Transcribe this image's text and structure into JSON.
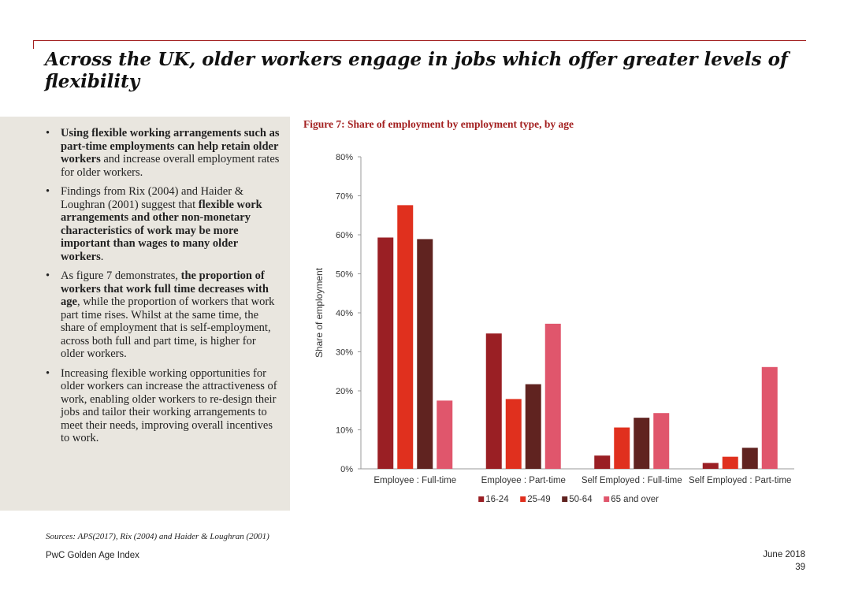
{
  "title": "Across the UK, older workers engage in jobs which offer greater levels of flexibility",
  "bullets": [
    {
      "bold_1": "Using flexible working arrangements such as part-time employments can help retain older workers",
      "text_1": " and increase overall employment rates for older workers.",
      "bold_2": "",
      "text_2": ""
    },
    {
      "bold_1": "",
      "text_1": "Findings from Rix (2004) and Haider & Loughran (2001) suggest that ",
      "bold_2": "flexible work arrangements and other non-monetary characteristics of work may be more important than wages to many older workers",
      "text_2": "."
    },
    {
      "bold_1": "",
      "text_1": "As figure 7 demonstrates, ",
      "bold_2": "the proportion of workers that work full time decreases with age",
      "text_2": ", while the proportion of workers that work part time rises. Whilst at the same time, the share of employment that is self-employment, across both full and part time, is higher for older workers."
    },
    {
      "bold_1": "",
      "text_1": "Increasing flexible working opportunities for older workers can increase the attractiveness of work, enabling older workers to re-design their jobs and tailor their working arrangements to meet their needs, improving overall incentives to work.",
      "bold_2": "",
      "text_2": ""
    }
  ],
  "figure_title": "Figure 7: Share of employment by employment type, by age",
  "sources": "Sources: APS(2017), Rix (2004) and Haider & Loughran (2001)",
  "footer": {
    "left": "PwC Golden Age Index",
    "date": "June 2018",
    "page": "39"
  },
  "colors": {
    "accent": "#a32020",
    "panel": "#e9e6df"
  },
  "chart_data": {
    "type": "bar",
    "title": "Figure 7: Share of employment by employment type, by age",
    "xlabel": "",
    "ylabel": "Share of employment",
    "ylim": [
      0,
      0.8
    ],
    "yticks": [
      0,
      0.1,
      0.2,
      0.3,
      0.4,
      0.5,
      0.6,
      0.7,
      0.8
    ],
    "ytick_labels": [
      "0%",
      "10%",
      "20%",
      "30%",
      "40%",
      "50%",
      "60%",
      "70%",
      "80%"
    ],
    "grid": false,
    "legend_position": "bottom",
    "categories": [
      "Employee : Full-time",
      "Employee : Part-time",
      "Self Employed : Full-time",
      "Self Employed : Part-time"
    ],
    "series": [
      {
        "name": "16-24",
        "color": "#9a1f24",
        "values": [
          0.593,
          0.347,
          0.034,
          0.015
        ]
      },
      {
        "name": "25-49",
        "color": "#e0301e",
        "values": [
          0.676,
          0.179,
          0.106,
          0.031
        ]
      },
      {
        "name": "50-64",
        "color": "#602320",
        "values": [
          0.589,
          0.217,
          0.131,
          0.054
        ]
      },
      {
        "name": "65 and over",
        "color": "#e0566c",
        "values": [
          0.175,
          0.372,
          0.143,
          0.261
        ]
      }
    ]
  }
}
